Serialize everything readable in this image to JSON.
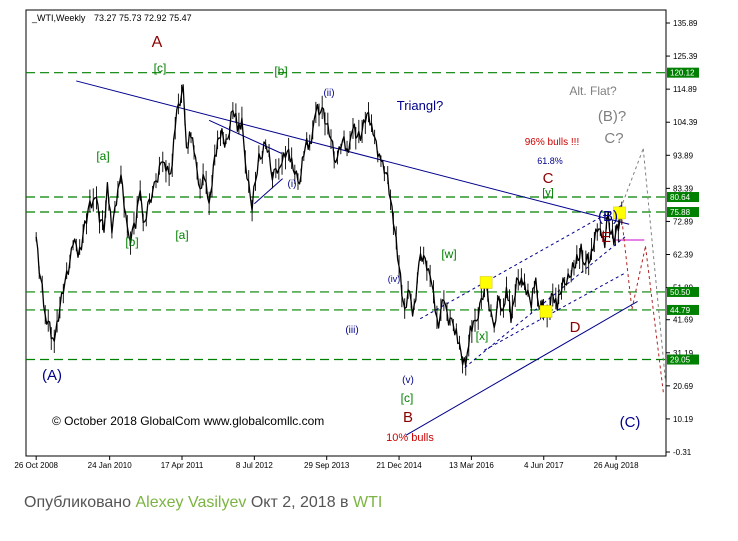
{
  "caption": {
    "prefix": "Опубликовано",
    "author": "Alexey Vasilyev",
    "date": "Окт 2, 2018 в",
    "instrument": "WTI"
  },
  "chart_data": {
    "type": "line",
    "title": "_WTI,Weekly",
    "ohlc": "73.27 75.73 72.92 75.47",
    "copyright": "© October 2018 GlobalCom www.globalcomllc.com",
    "x_tick_labels": [
      "26 Oct 2008",
      "24 Jan 2010",
      "17 Apr 2011",
      "8 Jul 2012",
      "29 Sep 2013",
      "21 Dec 2014",
      "13 Mar 2016",
      "4 Jun 2017",
      "26 Aug 2018"
    ],
    "y_tick_labels": [
      "135.89",
      "125.39",
      "114.89",
      "104.39",
      "93.89",
      "83.39",
      "72.89",
      "62.39",
      "51.89",
      "41.69",
      "31.19",
      "20.69",
      "10.19",
      "-0.31"
    ],
    "ylim": [
      -0.31,
      135.89
    ],
    "levels": [
      {
        "value": "120.12",
        "color": "#008000"
      },
      {
        "value": "80.64",
        "color": "#008000"
      },
      {
        "value": "75.88",
        "color": "#008000"
      },
      {
        "value": "50.50",
        "color": "#008000"
      },
      {
        "value": "44.79",
        "color": "#008000"
      },
      {
        "value": "29.05",
        "color": "#008000"
      }
    ],
    "colors": {
      "price": "#000000",
      "trendline": "#00008b",
      "level": "#008000",
      "projection": "#b22222",
      "alt_projection": "#808080",
      "target": "#cc00cc"
    },
    "series": [
      {
        "values": [
          [
            "2008-10-26",
            68
          ],
          [
            "2008-12-21",
            42
          ],
          [
            "2009-02-15",
            36
          ],
          [
            "2009-03-22",
            46
          ],
          [
            "2009-05-03",
            55
          ],
          [
            "2009-06-21",
            70
          ],
          [
            "2009-07-12",
            60
          ],
          [
            "2009-08-23",
            73
          ],
          [
            "2009-10-25",
            81
          ],
          [
            "2009-12-20",
            70
          ],
          [
            "2010-01-10",
            83
          ],
          [
            "2010-02-07",
            72
          ],
          [
            "2010-04-04",
            86
          ],
          [
            "2010-05-23",
            68
          ],
          [
            "2010-07-04",
            72
          ],
          [
            "2010-08-01",
            82
          ],
          [
            "2010-08-29",
            72
          ],
          [
            "2010-10-17",
            84
          ],
          [
            "2010-12-19",
            91
          ],
          [
            "2011-02-06",
            87
          ],
          [
            "2011-03-06",
            105
          ],
          [
            "2011-04-24",
            114
          ],
          [
            "2011-05-15",
            97
          ],
          [
            "2011-06-12",
            100
          ],
          [
            "2011-07-10",
            93
          ],
          [
            "2011-08-07",
            82
          ],
          [
            "2011-09-04",
            89
          ],
          [
            "2011-10-02",
            76
          ],
          [
            "2011-11-06",
            95
          ],
          [
            "2011-12-11",
            100
          ],
          [
            "2012-01-15",
            98
          ],
          [
            "2012-02-26",
            108
          ],
          [
            "2012-03-25",
            103
          ],
          [
            "2012-04-22",
            104
          ],
          [
            "2012-05-13",
            92
          ],
          [
            "2012-06-24",
            78
          ],
          [
            "2012-08-05",
            92
          ],
          [
            "2012-09-16",
            99
          ],
          [
            "2012-10-28",
            86
          ],
          [
            "2012-11-18",
            89
          ],
          [
            "2012-12-16",
            90
          ],
          [
            "2013-01-27",
            97
          ],
          [
            "2013-02-24",
            90
          ],
          [
            "2013-04-14",
            87
          ],
          [
            "2013-05-19",
            96
          ],
          [
            "2013-06-16",
            97
          ],
          [
            "2013-07-14",
            106
          ],
          [
            "2013-09-01",
            110
          ],
          [
            "2013-10-06",
            102
          ],
          [
            "2013-11-24",
            93
          ],
          [
            "2014-01-05",
            99
          ],
          [
            "2014-02-02",
            94
          ],
          [
            "2014-03-02",
            103
          ],
          [
            "2014-04-06",
            99
          ],
          [
            "2014-06-15",
            107
          ],
          [
            "2014-07-13",
            101
          ],
          [
            "2014-08-31",
            93
          ],
          [
            "2014-10-12",
            85
          ],
          [
            "2014-11-16",
            75
          ],
          [
            "2014-12-21",
            57
          ],
          [
            "2015-01-25",
            45
          ],
          [
            "2015-02-15",
            52
          ],
          [
            "2015-03-15",
            43
          ],
          [
            "2015-05-03",
            61
          ],
          [
            "2015-06-21",
            60
          ],
          [
            "2015-07-12",
            52
          ],
          [
            "2015-08-23",
            38
          ],
          [
            "2015-09-06",
            47
          ],
          [
            "2015-10-04",
            45
          ],
          [
            "2015-11-22",
            40
          ],
          [
            "2015-12-20",
            35
          ],
          [
            "2016-02-07",
            27
          ],
          [
            "2016-03-06",
            38
          ],
          [
            "2016-04-24",
            45
          ],
          [
            "2016-06-12",
            51
          ],
          [
            "2016-08-01",
            40
          ],
          [
            "2016-08-21",
            48
          ],
          [
            "2016-09-18",
            44
          ],
          [
            "2016-10-16",
            51
          ],
          [
            "2016-11-13",
            43
          ],
          [
            "2016-12-18",
            53
          ],
          [
            "2017-02-05",
            54
          ],
          [
            "2017-03-19",
            47
          ],
          [
            "2017-04-16",
            53
          ],
          [
            "2017-05-07",
            46
          ],
          [
            "2017-06-11",
            44
          ],
          [
            "2017-06-25",
            42
          ],
          [
            "2017-07-30",
            49
          ],
          [
            "2017-08-27",
            47
          ],
          [
            "2017-10-01",
            52
          ],
          [
            "2017-11-12",
            57
          ],
          [
            "2017-12-17",
            58
          ],
          [
            "2018-01-21",
            65
          ],
          [
            "2018-02-11",
            59
          ],
          [
            "2018-03-18",
            62
          ],
          [
            "2018-04-22",
            68
          ],
          [
            "2018-05-20",
            72
          ],
          [
            "2018-06-17",
            65
          ],
          [
            "2018-07-08",
            74
          ],
          [
            "2018-08-12",
            67
          ],
          [
            "2018-09-09",
            70
          ],
          [
            "2018-09-30",
            75.5
          ]
        ]
      }
    ],
    "annotations": [
      {
        "text": "A",
        "color": "#8b0000"
      },
      {
        "text": "[c]",
        "color": "#008000"
      },
      {
        "text": "[b]",
        "color": "#008000"
      },
      {
        "text": "(ii)",
        "color": "#00008b"
      },
      {
        "text": "Triangl?",
        "color": "#00008b"
      },
      {
        "text": "Alt. Flat?",
        "color": "#808080"
      },
      {
        "text": "(B)?",
        "color": "#808080"
      },
      {
        "text": "C?",
        "color": "#808080"
      },
      {
        "text": "96% bulls !!!",
        "color": "#cc0000"
      },
      {
        "text": "61.8%",
        "color": "#00008b"
      },
      {
        "text": "C",
        "color": "#8b0000"
      },
      {
        "text": "[y]",
        "color": "#008000"
      },
      {
        "text": "(B)",
        "color": "#00008b"
      },
      {
        "text": "E",
        "color": "#8b0000"
      },
      {
        "text": "[a]",
        "color": "#008000"
      },
      {
        "text": "[b]",
        "color": "#008000"
      },
      {
        "text": "[a]",
        "color": "#008000"
      },
      {
        "text": "(i)",
        "color": "#00008b"
      },
      {
        "text": "[w]",
        "color": "#008000"
      },
      {
        "text": "(iv)",
        "color": "#00008b"
      },
      {
        "text": "(iii)",
        "color": "#00008b"
      },
      {
        "text": "[x]",
        "color": "#008000"
      },
      {
        "text": "D",
        "color": "#8b0000"
      },
      {
        "text": "(A)",
        "color": "#00008b"
      },
      {
        "text": "(v)",
        "color": "#00008b"
      },
      {
        "text": "[c]",
        "color": "#008000"
      },
      {
        "text": "B",
        "color": "#8b0000"
      },
      {
        "text": "10% bulls",
        "color": "#cc0000"
      },
      {
        "text": "(C)",
        "color": "#00008b"
      }
    ]
  }
}
